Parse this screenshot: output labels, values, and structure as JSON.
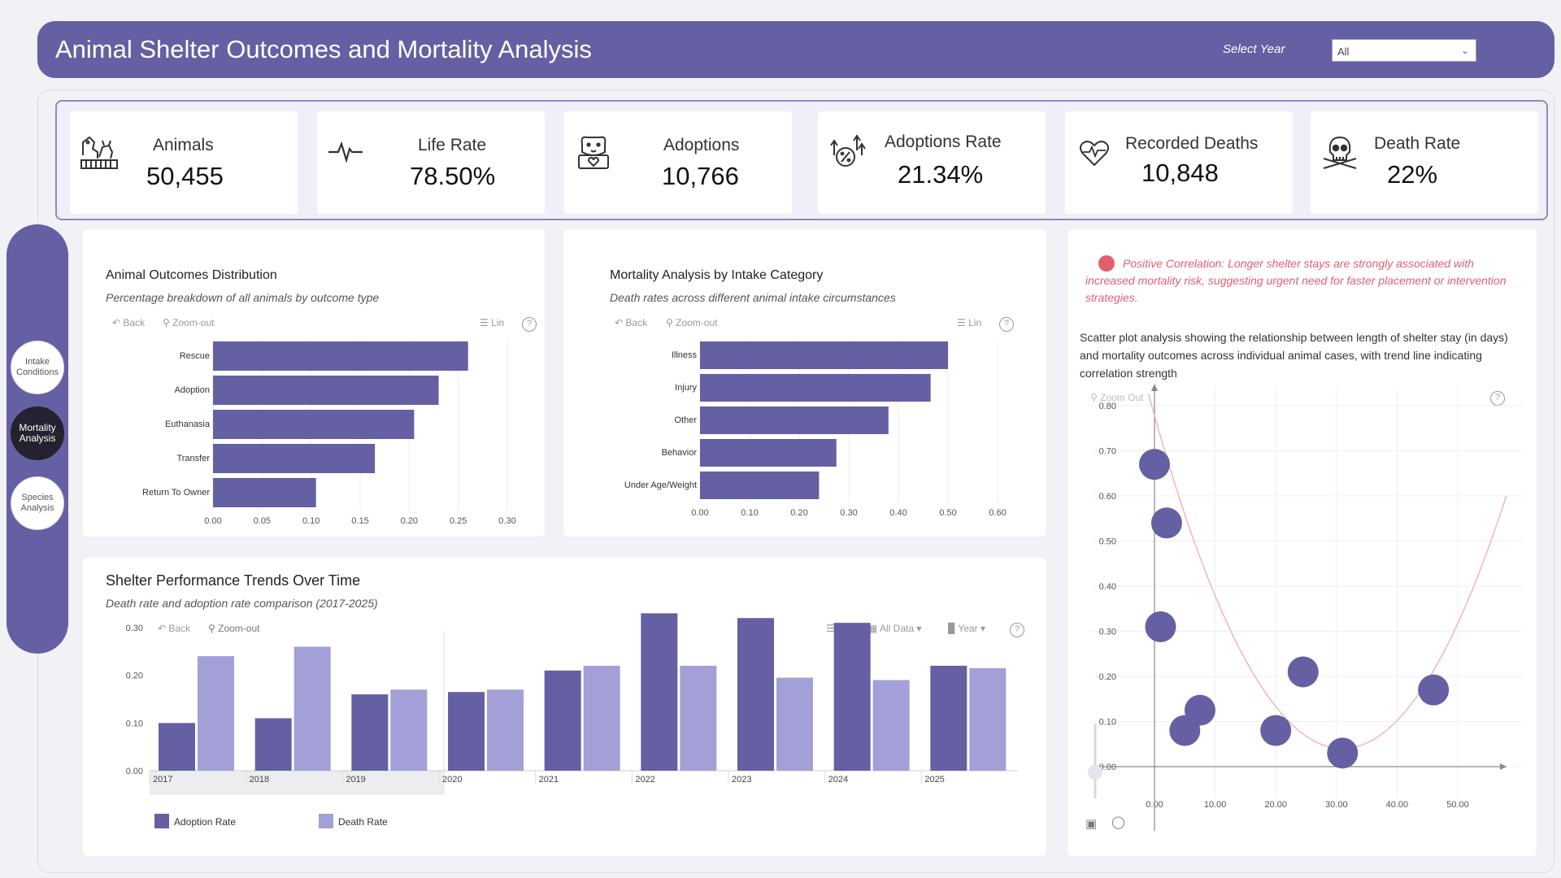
{
  "header": {
    "title": "Animal Shelter Outcomes and Mortality Analysis",
    "year_label": "Select Year",
    "year_value": "All"
  },
  "kpis": [
    {
      "label": "Animals",
      "value": "50,455",
      "icon": "animals-icon"
    },
    {
      "label": "Life Rate",
      "value": "78.50%",
      "icon": "heartbeat-icon"
    },
    {
      "label": "Adoptions",
      "value": "10,766",
      "icon": "dog-heart-icon"
    },
    {
      "label": "Adoptions Rate",
      "value": "21.34%",
      "icon": "percent-up-icon"
    },
    {
      "label": "Recorded Deaths",
      "value": "10,848",
      "icon": "heart-pulse-icon"
    },
    {
      "label": "Death Rate",
      "value": "22%",
      "icon": "skull-icon"
    }
  ],
  "nav": [
    {
      "label": "Intake Conditions",
      "active": false
    },
    {
      "label": "Mortality Analysis",
      "active": true
    },
    {
      "label": "Species Analysis",
      "active": false
    }
  ],
  "toolbar": {
    "back": "Back",
    "zoom_out": "Zoom-out",
    "lin": "Lin",
    "all_data": "All Data",
    "year": "Year",
    "help": "?",
    "zoom_out_scatter": "Zoom Out"
  },
  "outcomes": {
    "title": "Animal Outcomes Distribution",
    "subtitle": "Percentage breakdown of all animals by outcome type"
  },
  "mortality": {
    "title": "Mortality Analysis by Intake Category",
    "subtitle": "Death rates across different animal intake circumstances"
  },
  "trends": {
    "title": "Shelter Performance Trends Over Time",
    "subtitle": "Death rate and adoption rate comparison (2017-2025)"
  },
  "scatter": {
    "note": "Positive Correlation: Longer shelter stays are strongly associated with increased mortality risk, suggesting urgent need for faster placement or intervention strategies.",
    "description": "Scatter plot analysis showing the relationship between length of shelter stay (in days) and mortality outcomes across individual animal cases, with trend line indicating correlation strength"
  },
  "colors": {
    "primary": "#6460a3",
    "bar": "#6460a3",
    "bar_light": "#a2a0d6",
    "alert": "#e06070"
  },
  "chart_data": [
    {
      "type": "bar",
      "orientation": "horizontal",
      "categories": [
        "Rescue",
        "Adoption",
        "Euthanasia",
        "Transfer",
        "Return To Owner"
      ],
      "values": [
        0.26,
        0.23,
        0.205,
        0.165,
        0.105
      ],
      "xlim": [
        0,
        0.3
      ],
      "xticks": [
        "0.00",
        "0.05",
        "0.10",
        "0.15",
        "0.20",
        "0.25",
        "0.30"
      ]
    },
    {
      "type": "bar",
      "orientation": "horizontal",
      "categories": [
        "Illness",
        "Injury",
        "Other",
        "Behavior",
        "Under Age/Weight"
      ],
      "values": [
        0.5,
        0.465,
        0.38,
        0.275,
        0.24
      ],
      "xlim": [
        0,
        0.6
      ],
      "xticks": [
        "0.00",
        "0.10",
        "0.20",
        "0.30",
        "0.40",
        "0.50",
        "0.60"
      ]
    },
    {
      "type": "bar",
      "categories": [
        "2017",
        "2018",
        "2019",
        "2020",
        "2021",
        "2022",
        "2023",
        "2024",
        "2025"
      ],
      "series": [
        {
          "name": "Adoption Rate",
          "values": [
            0.1,
            0.11,
            0.16,
            0.165,
            0.21,
            0.33,
            0.32,
            0.31,
            0.22
          ]
        },
        {
          "name": "Death Rate",
          "values": [
            0.24,
            0.26,
            0.17,
            0.17,
            0.22,
            0.22,
            0.195,
            0.19,
            0.215
          ]
        }
      ],
      "ylim": [
        0,
        0.3
      ],
      "yticks": [
        "0.00",
        "0.10",
        "0.20",
        "0.30"
      ],
      "legend": "bottom-left"
    },
    {
      "type": "scatter",
      "points": [
        [
          0,
          0.67
        ],
        [
          2,
          0.54
        ],
        [
          1,
          0.31
        ],
        [
          5,
          0.08
        ],
        [
          7.5,
          0.125
        ],
        [
          20,
          0.08
        ],
        [
          24.5,
          0.21
        ],
        [
          31,
          0.03
        ],
        [
          46,
          0.17
        ]
      ],
      "trend": "quadratic",
      "xlim": [
        0,
        50
      ],
      "ylim": [
        0,
        0.8
      ],
      "xticks": [
        "0.00",
        "10.00",
        "20.00",
        "30.00",
        "40.00",
        "50.00"
      ],
      "yticks": [
        "0.00",
        "0.10",
        "0.20",
        "0.30",
        "0.40",
        "0.50",
        "0.60",
        "0.70",
        "0.80"
      ]
    }
  ]
}
